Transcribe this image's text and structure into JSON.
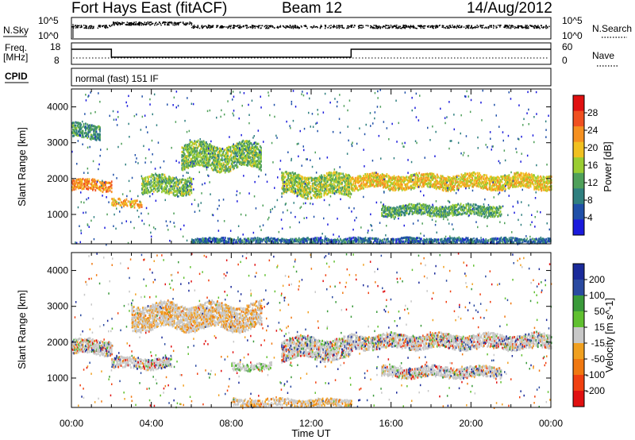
{
  "header": {
    "title": "Fort Hays East (fitACF)",
    "beam": "Beam 12",
    "date": "14/Aug/2012"
  },
  "top_panel": {
    "nsky_label": "N.Sky",
    "nsearch_label": "N.Search",
    "left_ticks": [
      "10^5",
      "10^0"
    ],
    "right_ticks": [
      "10^5",
      "10^0"
    ]
  },
  "freq_panel": {
    "freq_label": "Freq.",
    "freq_unit": "[MHz]",
    "left_ticks": [
      "18",
      "8"
    ],
    "nave_label": "Nave",
    "right_ticks": [
      "60",
      "0"
    ]
  },
  "cpid": {
    "label": "CPID",
    "mode": "normal (fast) 151 IF"
  },
  "chart_data": [
    {
      "type": "heatmap",
      "name": "power",
      "xlabel": "Time UT",
      "ylabel": "Slant Range [km]",
      "x_ticks": [
        "00:00",
        "04:00",
        "08:00",
        "12:00",
        "16:00",
        "20:00",
        "00:00"
      ],
      "x_range_hours": [
        0,
        24
      ],
      "y_ticks": [
        1000,
        2000,
        3000,
        4000
      ],
      "ylim": [
        180,
        4500
      ],
      "colorbar_label": "Power [dB]",
      "colorbar_ticks": [
        4,
        8,
        12,
        16,
        20,
        24,
        28
      ],
      "colorbar_range": [
        0,
        32
      ],
      "colors": [
        "#1a1adc",
        "#1f4fa8",
        "#2f7f7f",
        "#4fa05a",
        "#9acd32",
        "#f0c020",
        "#f59020",
        "#f05020",
        "#e01010"
      ],
      "bands": [
        {
          "t_start": 0.0,
          "t_end": 2.0,
          "r_center": 1800,
          "r_width": 300,
          "power": 24
        },
        {
          "t_start": 0.0,
          "t_end": 1.4,
          "r_center": 3300,
          "r_width": 400,
          "power": 10
        },
        {
          "t_start": 2.0,
          "t_end": 3.5,
          "r_center": 1300,
          "r_width": 200,
          "power": 22
        },
        {
          "t_start": 3.5,
          "t_end": 6.0,
          "r_center": 1800,
          "r_width": 500,
          "power": 14
        },
        {
          "t_start": 5.5,
          "t_end": 9.5,
          "r_center": 2600,
          "r_width": 700,
          "power": 14
        },
        {
          "t_start": 10.5,
          "t_end": 14.0,
          "r_center": 1800,
          "r_width": 600,
          "power": 16
        },
        {
          "t_start": 14.0,
          "t_end": 24.0,
          "r_center": 1900,
          "r_width": 400,
          "power": 20
        },
        {
          "t_start": 15.5,
          "t_end": 21.5,
          "r_center": 1100,
          "r_width": 300,
          "power": 12
        },
        {
          "t_start": 6.0,
          "t_end": 24.0,
          "r_center": 250,
          "r_width": 150,
          "power": 6
        }
      ]
    },
    {
      "type": "heatmap",
      "name": "velocity",
      "xlabel": "Time UT",
      "ylabel": "Slant Range [km]",
      "x_ticks": [
        "00:00",
        "04:00",
        "08:00",
        "12:00",
        "16:00",
        "20:00",
        "00:00"
      ],
      "x_range_hours": [
        0,
        24
      ],
      "y_ticks": [
        1000,
        2000,
        3000,
        4000
      ],
      "ylim": [
        180,
        4500
      ],
      "colorbar_label": "Velocity [m s^-1]",
      "colorbar_ticks": [
        200,
        100,
        50,
        15,
        -15,
        -50,
        -100,
        -200
      ],
      "colors": [
        "#1a2a9a",
        "#2a4aa0",
        "#3a9a3a",
        "#60c030",
        "#c8c8c8",
        "#f0a020",
        "#f07810",
        "#f04010",
        "#e01010"
      ],
      "bands": [
        {
          "t_start": 0.0,
          "t_end": 2.0,
          "r_center": 1850,
          "r_width": 400,
          "velocity": 0
        },
        {
          "t_start": 2.0,
          "t_end": 5.0,
          "r_center": 1400,
          "r_width": 300,
          "velocity": 0
        },
        {
          "t_start": 3.0,
          "t_end": 9.5,
          "r_center": 2700,
          "r_width": 700,
          "velocity": -30
        },
        {
          "t_start": 10.5,
          "t_end": 14.0,
          "r_center": 1800,
          "r_width": 600,
          "velocity": 0
        },
        {
          "t_start": 14.0,
          "t_end": 24.0,
          "r_center": 2000,
          "r_width": 400,
          "velocity": 0
        },
        {
          "t_start": 15.5,
          "t_end": 21.5,
          "r_center": 1150,
          "r_width": 300,
          "velocity": 0
        },
        {
          "t_start": 8.0,
          "t_end": 14.0,
          "r_center": 300,
          "r_width": 200,
          "velocity": -60
        },
        {
          "t_start": 8.0,
          "t_end": 10.0,
          "r_center": 1300,
          "r_width": 200,
          "velocity": 40
        }
      ]
    }
  ]
}
